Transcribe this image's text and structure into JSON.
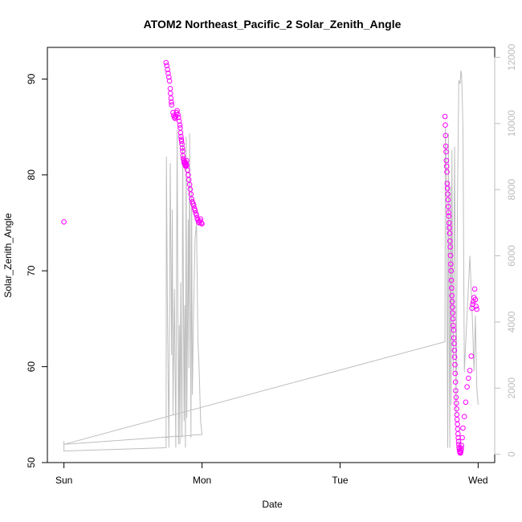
{
  "chart_data": {
    "type": "scatter",
    "title": "ATOM2 Northeast_Pacific_2 Solar_Zenith_Angle",
    "xlabel": "Date",
    "ylabel": "Solar_Zenith_Angle",
    "x_ticks": [
      {
        "value": 0,
        "label": "Sun"
      },
      {
        "value": 1,
        "label": "Mon"
      },
      {
        "value": 2,
        "label": "Tue"
      },
      {
        "value": 3,
        "label": "Wed"
      }
    ],
    "xlim": [
      -0.12,
      3.12
    ],
    "ylim": [
      50.0,
      93.3
    ],
    "y_ticks": [
      50,
      60,
      70,
      80,
      90
    ],
    "y2lim": [
      -250,
      12300
    ],
    "y2_ticks": [
      0,
      2000,
      4000,
      6000,
      8000,
      10000,
      12000
    ],
    "grid": false,
    "colors": {
      "points": "#ff00ff",
      "secondary_line": "#bebebe",
      "secondary_axis": "#bdbdbd",
      "frame": "#000000"
    },
    "series": [
      {
        "kind": "points",
        "x": [
          0.0,
          0.74,
          0.745,
          0.75,
          0.755,
          0.76,
          0.765,
          0.77,
          0.772,
          0.775,
          0.778,
          0.78,
          0.79,
          0.795,
          0.8,
          0.805,
          0.81,
          0.815,
          0.82,
          0.825,
          0.83,
          0.835,
          0.84,
          0.842,
          0.845,
          0.848,
          0.85,
          0.852,
          0.855,
          0.858,
          0.86,
          0.862,
          0.865,
          0.868,
          0.87,
          0.872,
          0.875,
          0.878,
          0.88,
          0.882,
          0.885,
          0.888,
          0.89,
          0.895,
          0.9,
          0.905,
          0.91,
          0.915,
          0.92,
          0.925,
          0.93,
          0.935,
          0.94,
          0.945,
          0.95,
          0.955,
          0.96,
          0.965,
          0.97,
          0.975,
          0.98,
          0.985,
          0.99,
          0.995,
          1.0,
          2.76,
          2.762,
          2.764,
          2.766,
          2.768,
          2.77,
          2.772,
          2.774,
          2.776,
          2.778,
          2.78,
          2.782,
          2.784,
          2.786,
          2.788,
          2.79,
          2.792,
          2.794,
          2.796,
          2.798,
          2.8,
          2.802,
          2.804,
          2.806,
          2.808,
          2.81,
          2.812,
          2.814,
          2.816,
          2.818,
          2.82,
          2.822,
          2.824,
          2.826,
          2.828,
          2.83,
          2.832,
          2.834,
          2.836,
          2.838,
          2.84,
          2.842,
          2.844,
          2.846,
          2.848,
          2.85,
          2.852,
          2.854,
          2.856,
          2.858,
          2.86,
          2.862,
          2.864,
          2.866,
          2.868,
          2.87,
          2.872,
          2.874,
          2.876,
          2.878,
          2.88,
          2.885,
          2.89,
          2.9,
          2.91,
          2.92,
          2.93,
          2.94,
          2.95,
          2.955,
          2.96,
          2.965,
          2.97,
          2.975,
          2.98,
          2.985,
          2.99
        ],
        "y": [
          75.1,
          91.7,
          91.4,
          91.0,
          90.6,
          90.2,
          89.8,
          89.0,
          88.5,
          88.0,
          87.6,
          87.3,
          86.5,
          86.2,
          86.0,
          85.9,
          86.1,
          86.5,
          86.7,
          86.3,
          86.0,
          85.6,
          85.2,
          84.9,
          84.4,
          84.0,
          83.7,
          83.5,
          83.2,
          82.8,
          82.5,
          82.0,
          81.7,
          81.5,
          81.3,
          81.2,
          81.4,
          81.1,
          81.0,
          80.9,
          81.2,
          81.5,
          81.0,
          80.5,
          80.0,
          79.5,
          79.0,
          78.5,
          78.0,
          77.5,
          77.2,
          77.0,
          76.8,
          76.5,
          76.3,
          76.0,
          75.8,
          75.5,
          75.3,
          75.1,
          75.0,
          75.2,
          75.4,
          75.0,
          74.9,
          86.1,
          85.2,
          84.1,
          83.0,
          82.4,
          81.5,
          80.9,
          80.3,
          79.1,
          78.6,
          78.0,
          77.4,
          76.7,
          76.1,
          75.7,
          75.0,
          74.5,
          73.9,
          73.1,
          72.5,
          71.6,
          70.7,
          70.0,
          69.0,
          68.2,
          67.4,
          66.8,
          66.2,
          65.6,
          65.0,
          64.3,
          63.8,
          63.0,
          62.4,
          61.7,
          61.0,
          60.2,
          59.3,
          58.4,
          57.5,
          56.8,
          56.2,
          55.6,
          55.0,
          54.5,
          54.0,
          53.5,
          53.0,
          52.6,
          52.2,
          51.9,
          51.6,
          51.4,
          51.2,
          51.1,
          51.0,
          51.0,
          51.1,
          51.3,
          51.5,
          51.8,
          52.6,
          53.6,
          54.8,
          56.3,
          57.9,
          58.8,
          59.6,
          61.1,
          66.1,
          66.5,
          66.8,
          67.2,
          68.1,
          67.0,
          66.3,
          66.0
        ],
        "marker": "open-circle",
        "color": "#ff00ff"
      },
      {
        "kind": "line",
        "axis": "right",
        "x": [
          0.0,
          0.0,
          0.74,
          0.742,
          0.75,
          0.76,
          0.77,
          0.78,
          0.785,
          0.79,
          0.8,
          0.81,
          0.82,
          0.83,
          0.835,
          0.84,
          0.845,
          0.85,
          0.855,
          0.86,
          0.87,
          0.875,
          0.88,
          0.885,
          0.89,
          0.895,
          0.9,
          0.905,
          0.91,
          0.92,
          0.925,
          0.93,
          0.94,
          0.95,
          0.96,
          0.97,
          0.98,
          0.99,
          1.0,
          0.0,
          2.76,
          2.762,
          2.77,
          2.78,
          2.785,
          2.79,
          2.795,
          2.8,
          2.805,
          2.81,
          2.82,
          2.83,
          2.84,
          2.85,
          2.86,
          2.87,
          2.875,
          2.88,
          2.885,
          2.89,
          2.9,
          2.92,
          2.94,
          2.96,
          2.97,
          2.975,
          2.98,
          2.985,
          2.99,
          3.0
        ],
        "y": [
          400,
          100,
          200,
          9000,
          4000,
          200,
          8800,
          3000,
          7400,
          1200,
          5000,
          200,
          9800,
          300,
          3900,
          300,
          5200,
          2500,
          500,
          9400,
          1000,
          4500,
          200,
          9600,
          1100,
          3900,
          7100,
          2600,
          9700,
          500,
          8100,
          1800,
          4500,
          6500,
          7000,
          3500,
          2500,
          1000,
          600,
          300,
          3400,
          9900,
          8500,
          200,
          9700,
          3800,
          200,
          8100,
          1500,
          9200,
          2500,
          9300,
          1200,
          7500,
          11300,
          11200,
          11600,
          11500,
          10800,
          9800,
          2500,
          4200,
          6000,
          3900,
          2500,
          3300,
          4200,
          3100,
          2000,
          1500
        ]
      }
    ]
  }
}
